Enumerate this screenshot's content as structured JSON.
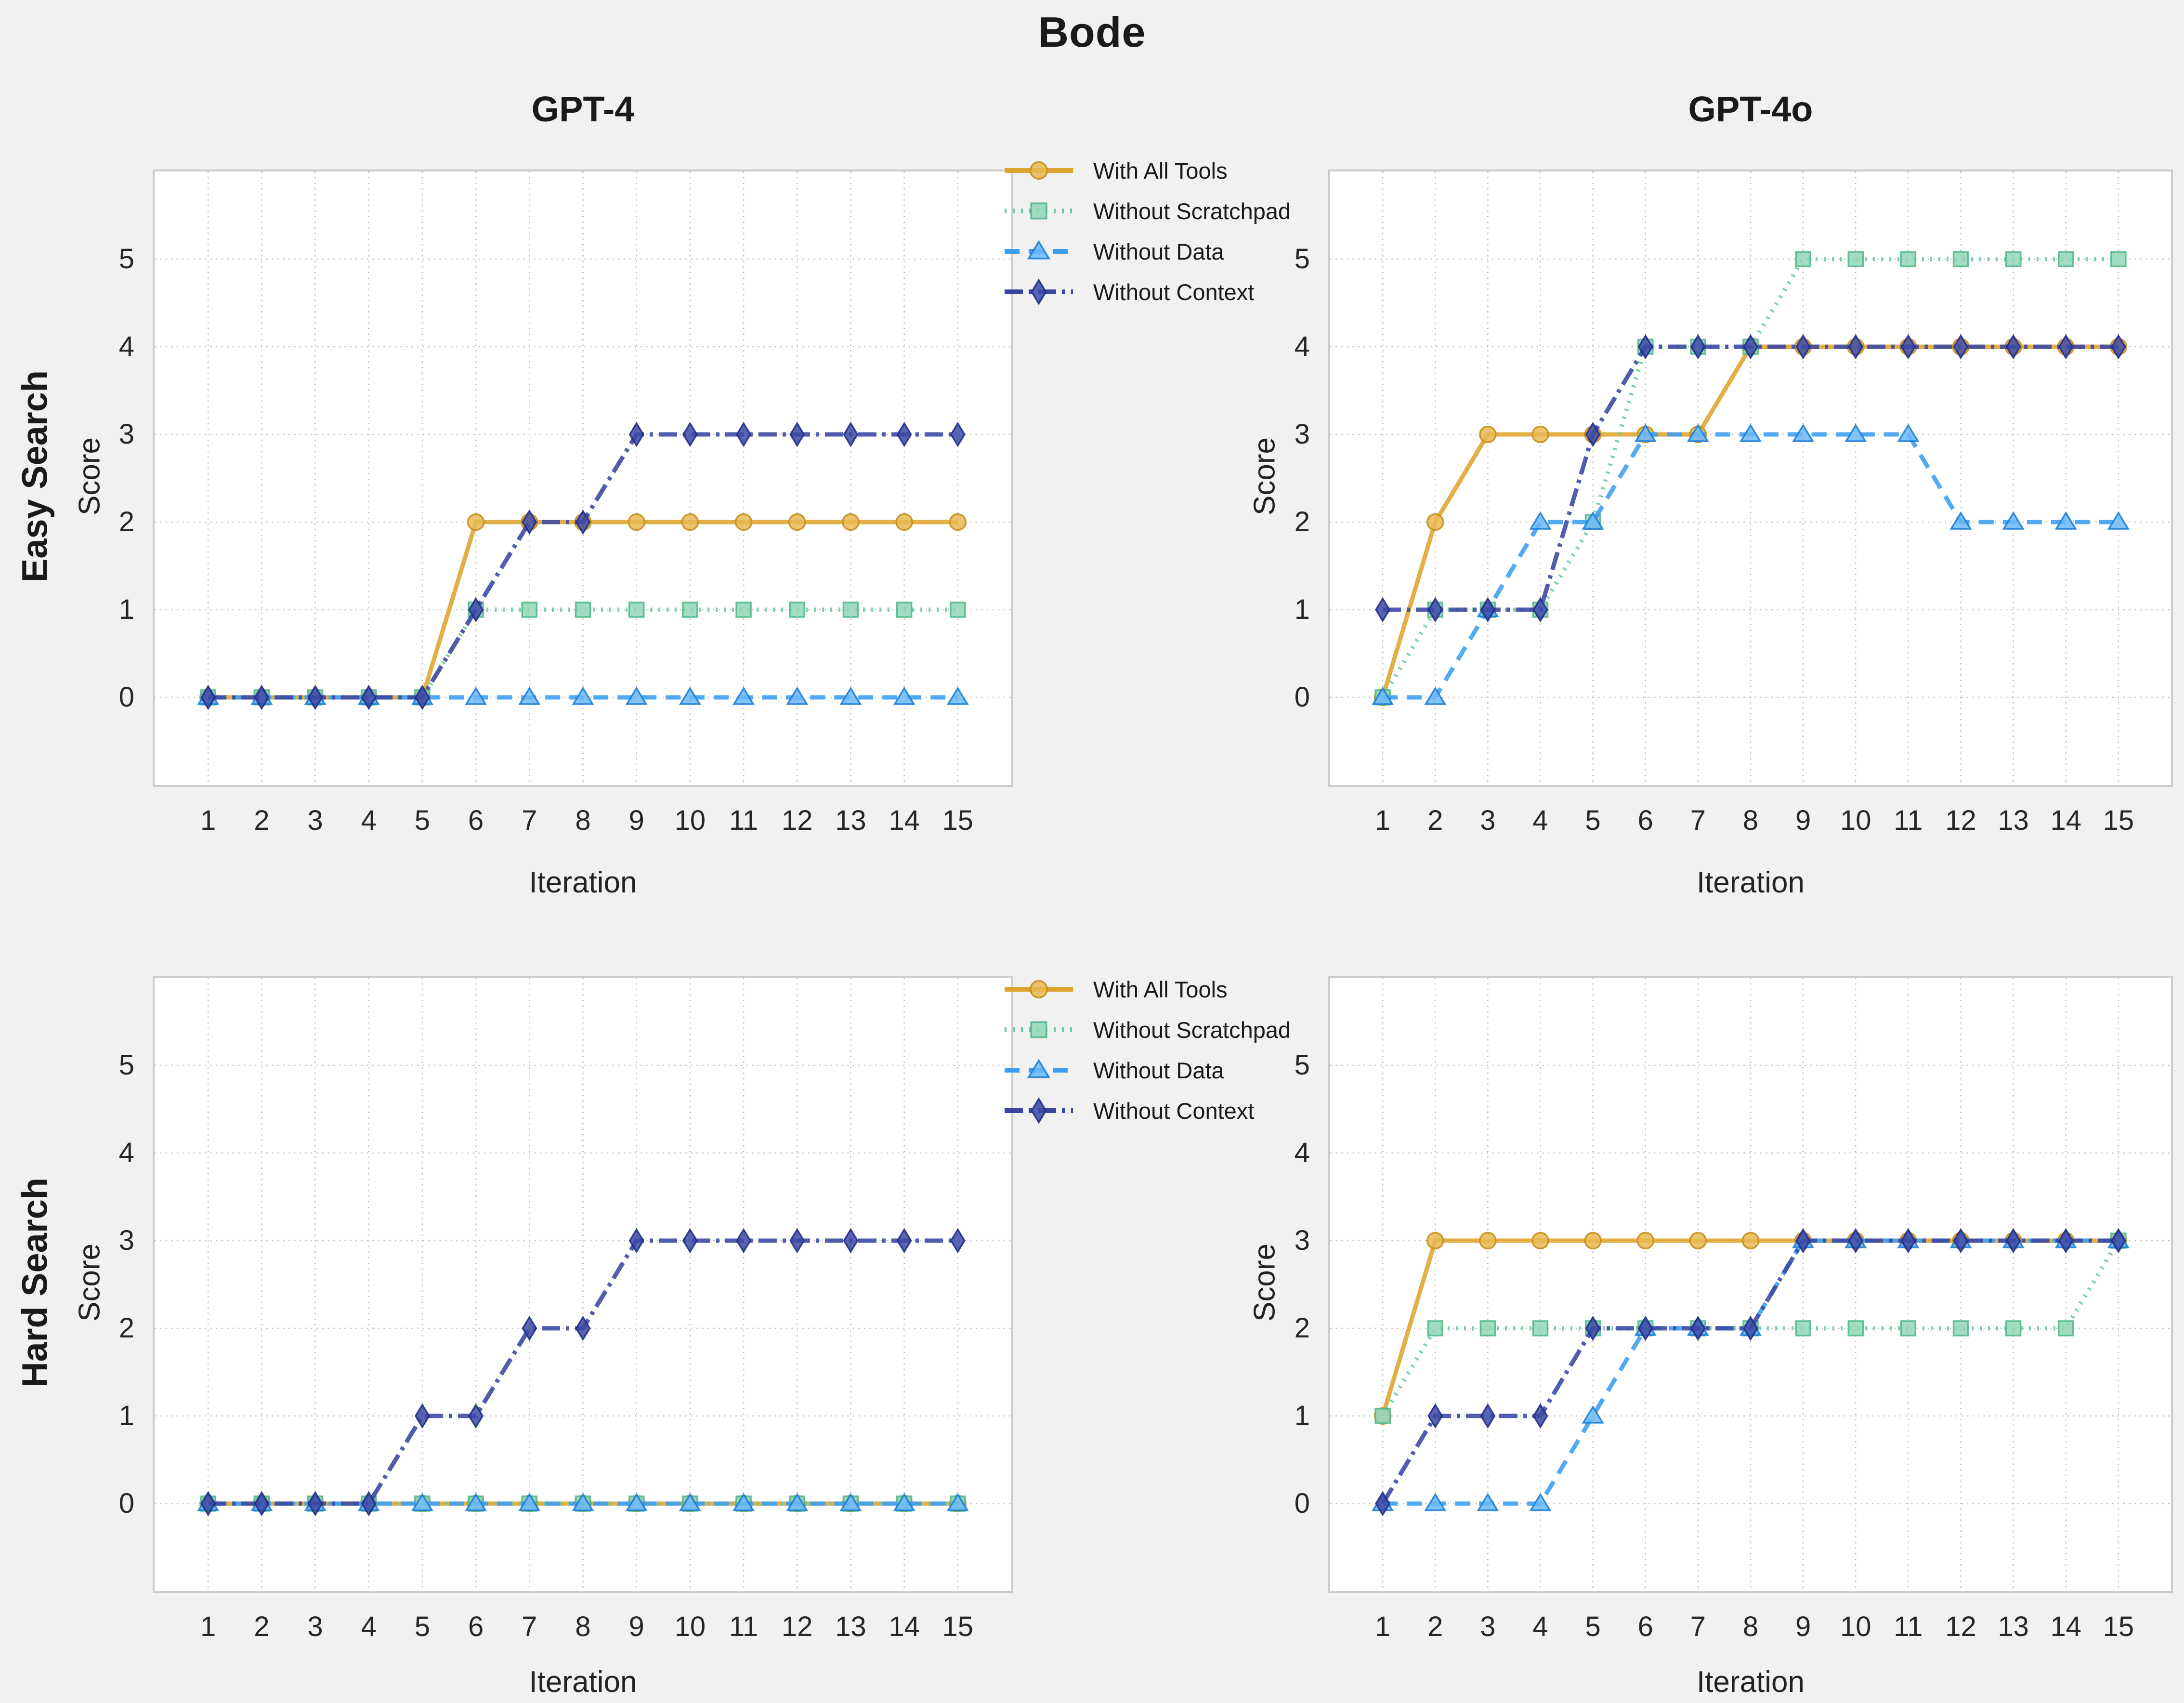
{
  "title": "Bode",
  "columns": [
    "GPT-4",
    "GPT-4o"
  ],
  "rows": [
    "Easy Search",
    "Hard Search"
  ],
  "axis": {
    "xlabel": "Iteration",
    "ylabel": "Score",
    "xticks": [
      1,
      2,
      3,
      4,
      5,
      6,
      7,
      8,
      9,
      10,
      11,
      12,
      13,
      14,
      15
    ],
    "yticks": [
      0,
      1,
      2,
      3,
      4,
      5
    ],
    "xlim": [
      0,
      16
    ],
    "ylim": [
      -1,
      6
    ]
  },
  "colors": {
    "figure_background": "#f1f1f2",
    "plot_background": "#ffffff",
    "plot_border": "#cbcbcb",
    "grid": "#bdbdbd",
    "text": "#1a1a1a"
  },
  "legend": [
    {
      "label": "With All Tools",
      "marker": "circle",
      "dash": "solid",
      "color": "#dfa42d",
      "fill": "#e9ba55",
      "edge": "#c8901b"
    },
    {
      "label": "Without Scratchpad",
      "marker": "square",
      "dash": "dotted",
      "color": "#6cc8a1",
      "fill": "#90d6b8",
      "edge": "#54ba8e"
    },
    {
      "label": "Without Data",
      "marker": "triangle",
      "dash": "dashed",
      "color": "#3b9ef3",
      "fill": "#6cb9f7",
      "edge": "#1e7fd6"
    },
    {
      "label": "Without Context",
      "marker": "diamond",
      "dash": "dashdot",
      "color": "#3946a3",
      "fill": "#3d4aa5",
      "edge": "#222f8c"
    }
  ],
  "chart_data": [
    {
      "type": "line",
      "row": "Easy Search",
      "col": "GPT-4",
      "x": [
        1,
        2,
        3,
        4,
        5,
        6,
        7,
        8,
        9,
        10,
        11,
        12,
        13,
        14,
        15
      ],
      "series": [
        {
          "name": "With All Tools",
          "values": [
            0,
            0,
            0,
            0,
            0,
            2,
            2,
            2,
            2,
            2,
            2,
            2,
            2,
            2,
            2
          ]
        },
        {
          "name": "Without Scratchpad",
          "values": [
            0,
            0,
            0,
            0,
            0,
            1,
            1,
            1,
            1,
            1,
            1,
            1,
            1,
            1,
            1
          ]
        },
        {
          "name": "Without Data",
          "values": [
            0,
            0,
            0,
            0,
            0,
            0,
            0,
            0,
            0,
            0,
            0,
            0,
            0,
            0,
            0
          ]
        },
        {
          "name": "Without Context",
          "values": [
            0,
            0,
            0,
            0,
            0,
            1,
            2,
            2,
            3,
            3,
            3,
            3,
            3,
            3,
            3
          ]
        }
      ]
    },
    {
      "type": "line",
      "row": "Easy Search",
      "col": "GPT-4o",
      "x": [
        1,
        2,
        3,
        4,
        5,
        6,
        7,
        8,
        9,
        10,
        11,
        12,
        13,
        14,
        15
      ],
      "series": [
        {
          "name": "With All Tools",
          "values": [
            0,
            2,
            3,
            3,
            3,
            3,
            3,
            4,
            4,
            4,
            4,
            4,
            4,
            4,
            4
          ]
        },
        {
          "name": "Without Scratchpad",
          "values": [
            0,
            1,
            1,
            1,
            2,
            4,
            4,
            4,
            5,
            5,
            5,
            5,
            5,
            5,
            5
          ]
        },
        {
          "name": "Without Data",
          "values": [
            0,
            0,
            1,
            2,
            2,
            3,
            3,
            3,
            3,
            3,
            3,
            2,
            2,
            2,
            2
          ]
        },
        {
          "name": "Without Context",
          "values": [
            1,
            1,
            1,
            1,
            3,
            4,
            4,
            4,
            4,
            4,
            4,
            4,
            4,
            4,
            4
          ]
        }
      ]
    },
    {
      "type": "line",
      "row": "Hard Search",
      "col": "GPT-4",
      "x": [
        1,
        2,
        3,
        4,
        5,
        6,
        7,
        8,
        9,
        10,
        11,
        12,
        13,
        14,
        15
      ],
      "series": [
        {
          "name": "With All Tools",
          "values": [
            0,
            0,
            0,
            0,
            0,
            0,
            0,
            0,
            0,
            0,
            0,
            0,
            0,
            0,
            0
          ]
        },
        {
          "name": "Without Scratchpad",
          "values": [
            0,
            0,
            0,
            0,
            0,
            0,
            0,
            0,
            0,
            0,
            0,
            0,
            0,
            0,
            0
          ]
        },
        {
          "name": "Without Data",
          "values": [
            0,
            0,
            0,
            0,
            0,
            0,
            0,
            0,
            0,
            0,
            0,
            0,
            0,
            0,
            0
          ]
        },
        {
          "name": "Without Context",
          "values": [
            0,
            0,
            0,
            0,
            1,
            1,
            2,
            2,
            3,
            3,
            3,
            3,
            3,
            3,
            3
          ]
        }
      ]
    },
    {
      "type": "line",
      "row": "Hard Search",
      "col": "GPT-4o",
      "x": [
        1,
        2,
        3,
        4,
        5,
        6,
        7,
        8,
        9,
        10,
        11,
        12,
        13,
        14,
        15
      ],
      "series": [
        {
          "name": "With All Tools",
          "values": [
            1,
            3,
            3,
            3,
            3,
            3,
            3,
            3,
            3,
            3,
            3,
            3,
            3,
            3,
            3
          ]
        },
        {
          "name": "Without Scratchpad",
          "values": [
            1,
            2,
            2,
            2,
            2,
            2,
            2,
            2,
            2,
            2,
            2,
            2,
            2,
            2,
            3
          ]
        },
        {
          "name": "Without Data",
          "values": [
            0,
            0,
            0,
            0,
            1,
            2,
            2,
            2,
            3,
            3,
            3,
            3,
            3,
            3,
            3
          ]
        },
        {
          "name": "Without Context",
          "values": [
            0,
            1,
            1,
            1,
            2,
            2,
            2,
            2,
            3,
            3,
            3,
            3,
            3,
            3,
            3
          ]
        }
      ]
    }
  ]
}
